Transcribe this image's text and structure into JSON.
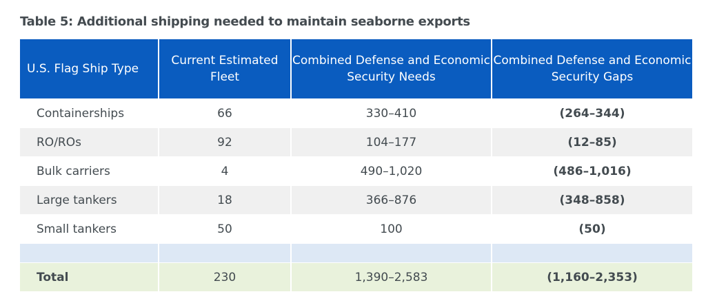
{
  "title": "Table 5: Additional shipping needed to maintain seaborne exports",
  "headers": [
    "U.S. Flag Ship Type",
    "Current Estimated Fleet",
    "Combined Defense and Economic Security Needs",
    "Combined Defense and Economic Security Gaps"
  ],
  "rows": [
    {
      "type": "Containerships",
      "fleet": "66",
      "needs": "330–410",
      "gaps": "(264–344)"
    },
    {
      "type": "RO/ROs",
      "fleet": "92",
      "needs": "104–177",
      "gaps": "(12–85)"
    },
    {
      "type": "Bulk carriers",
      "fleet": "4",
      "needs": "490–1,020",
      "gaps": "(486–1,016)"
    },
    {
      "type": "Large tankers",
      "fleet": "18",
      "needs": "366–876",
      "gaps": "(348–858)"
    },
    {
      "type": "Small tankers",
      "fleet": "50",
      "needs": "100",
      "gaps": "(50)"
    }
  ],
  "total": {
    "type": "Total",
    "fleet": "230",
    "needs": "1,390–2,583",
    "gaps": "(1,160–2,353)"
  },
  "colors": {
    "header": "#0a5cbf",
    "alt_row": "#f0f0f0",
    "band": "#dde8f5",
    "total": "#e9f2dc"
  }
}
